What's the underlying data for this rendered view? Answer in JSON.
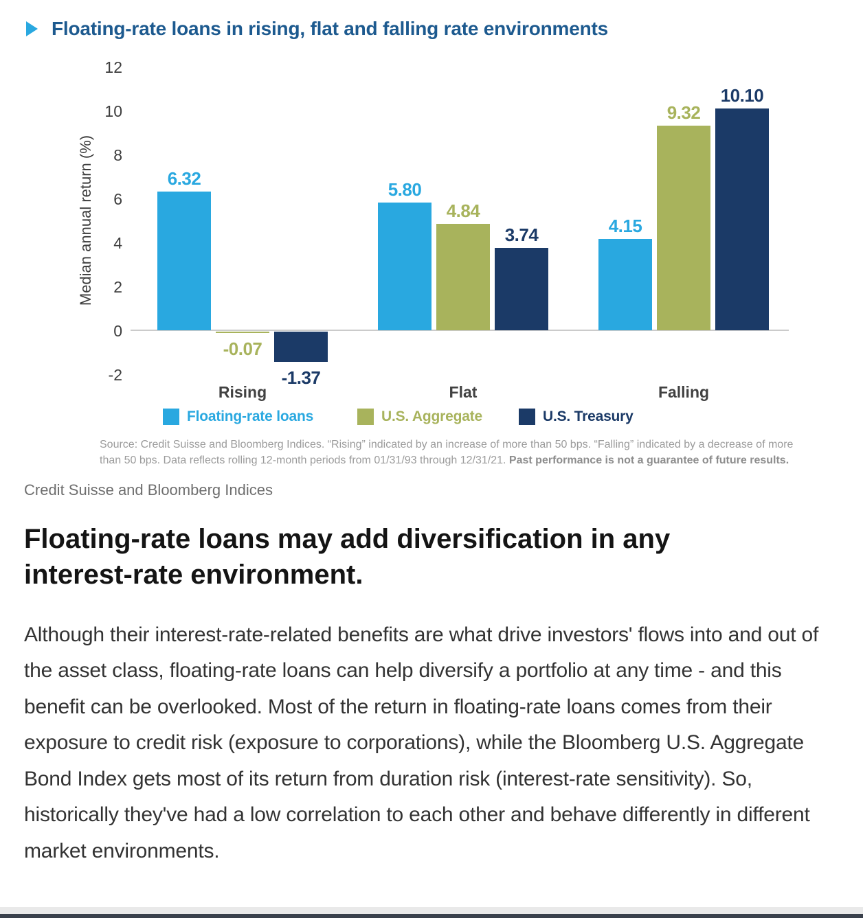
{
  "page": {
    "caption": "Credit Suisse and Bloomberg Indices",
    "heading": "Floating-rate loans may add diversification in any interest-rate environment.",
    "body": "Although their interest-rate-related benefits are what drive investors' flows into and out of the asset class, floating-rate loans can help diversify a portfolio at any time - and this benefit can be overlooked. Most of the return in floating-rate loans comes from their exposure to credit risk (exposure to corporations), while the Bloomberg U.S. Aggregate Bond Index gets most of its return from duration risk (interest-rate sensitivity). So, historically they've had a low correlation to each other and behave differently in different market environments.",
    "source_note": "Source: Credit Suisse and Bloomberg Indices. “Rising” indicated by an increase of more than 50 bps. “Falling” indicated by a decrease of more than 50 bps. Data reflects rolling 12-month periods from 01/31/93 through 12/31/21. ",
    "source_note_bold": "Past performance is not a guarantee of future results."
  },
  "chart_data": {
    "type": "bar",
    "title": "Floating-rate loans in rising, flat and falling rate environments",
    "categories": [
      "Rising",
      "Flat",
      "Falling"
    ],
    "series": [
      {
        "name": "Floating-rate loans",
        "color": "#29a8e0",
        "values": [
          6.32,
          5.8,
          4.15
        ]
      },
      {
        "name": "U.S. Aggregate",
        "color": "#a8b35c",
        "values": [
          -0.07,
          4.84,
          9.32
        ]
      },
      {
        "name": "U.S. Treasury",
        "color": "#1b3a67",
        "values": [
          -1.37,
          3.74,
          10.1
        ]
      }
    ],
    "ylabel": "Median annual return (%)",
    "ylim": [
      -2,
      12
    ],
    "ytick_step": 2,
    "grid": false,
    "legend_position": "bottom",
    "value_labels": true
  },
  "colors": {
    "title_blue": "#1d5a8f",
    "arrow_blue": "#29a8e0",
    "axis_text": "#3d3d3d",
    "zero_line": "#cbcbcb",
    "source_gray": "#9b9b9b",
    "caption_gray": "#6e6e6e",
    "footer_light": "#e9e9e9",
    "footer_dark": "#39404b"
  }
}
